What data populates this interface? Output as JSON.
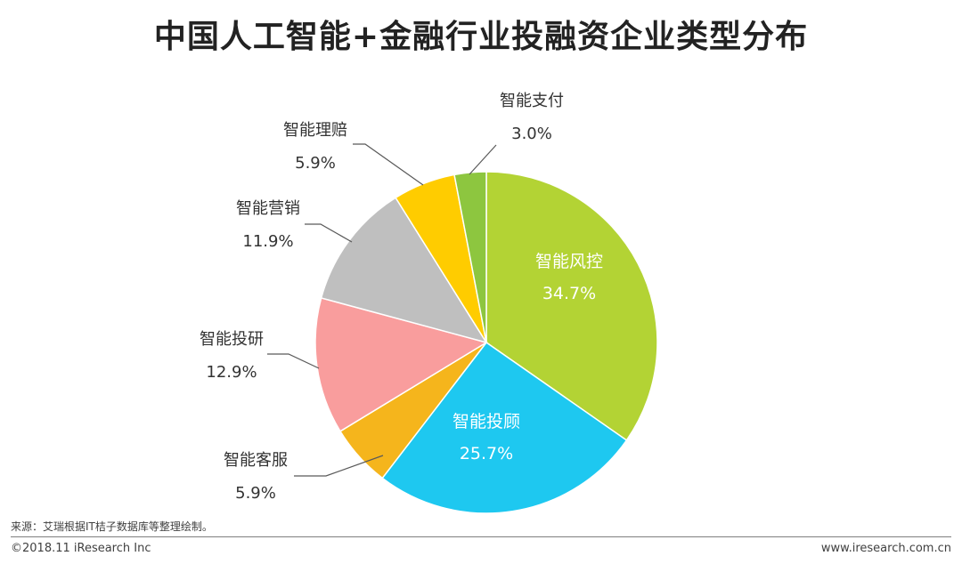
{
  "page": {
    "title": "中国人工智能+金融行业投融资企业类型分布",
    "source": "来源：艾瑞根据IT桔子数据库等整理绘制。",
    "copyright": "©2018.11 iResearch Inc",
    "website": "www.iresearch.com.cn"
  },
  "chart_data": {
    "type": "pie",
    "title": "中国人工智能+金融行业投融资企业类型分布",
    "slices": [
      {
        "label": "智能风控",
        "value": 34.7,
        "display": "34.7%",
        "color": "#b3d334"
      },
      {
        "label": "智能投顾",
        "value": 25.7,
        "display": "25.7%",
        "color": "#1ec8f0"
      },
      {
        "label": "智能客服",
        "value": 5.9,
        "display": "5.9%",
        "color": "#f5b51c"
      },
      {
        "label": "智能投研",
        "value": 12.9,
        "display": "12.9%",
        "color": "#f99d9d"
      },
      {
        "label": "智能营销",
        "value": 11.9,
        "display": "11.9%",
        "color": "#bfbfbf"
      },
      {
        "label": "智能理赔",
        "value": 5.9,
        "display": "5.9%",
        "color": "#ffcc00"
      },
      {
        "label": "智能支付",
        "value": 3.0,
        "display": "3.0%",
        "color": "#8dc63f"
      }
    ],
    "start_angle_deg": 0,
    "direction": "clockwise"
  }
}
